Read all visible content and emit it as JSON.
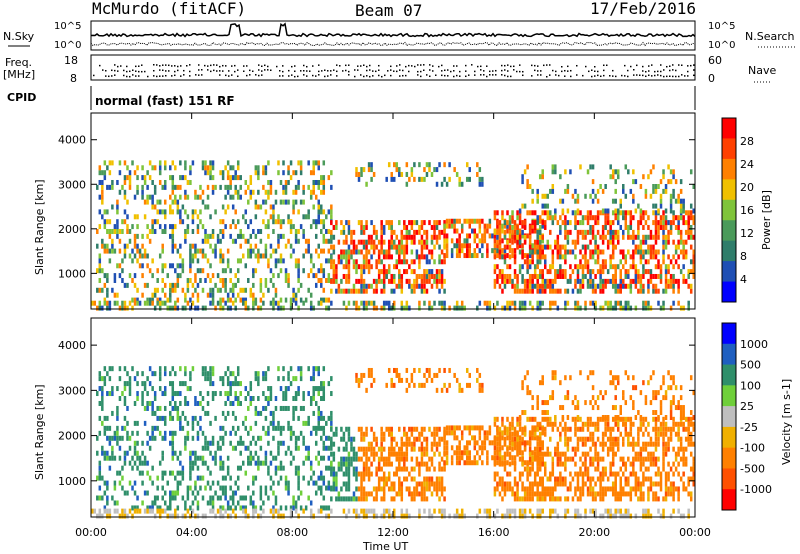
{
  "header": {
    "site": "McMurdo (fitACF)",
    "beam": "Beam 07",
    "date": "17/Feb/2016"
  },
  "noise_panel": {
    "left_label": "N.Sky",
    "right_label": "N.Search",
    "left_ticks": [
      "10^5",
      "10^0"
    ],
    "right_ticks": [
      "10^5",
      "10^0"
    ]
  },
  "freq_panel": {
    "left_label_top": "Freq.",
    "left_label_bottom": "[MHz]",
    "right_label": "Nave",
    "left_ticks": [
      "18",
      "8"
    ],
    "right_ticks": [
      "60",
      "0"
    ]
  },
  "cpid": {
    "label": "CPID",
    "value": "normal (fast) 151 RF"
  },
  "colors": {
    "power_scale": [
      "#0000ff",
      "#1f4fb4",
      "#2f7d6a",
      "#4a9a5a",
      "#7fc43a",
      "#f0c000",
      "#ff8000",
      "#ff4000",
      "#ff0000"
    ],
    "velocity_scale": [
      "#0000ff",
      "#1f5fc0",
      "#2f8f6a",
      "#6fcf3a",
      "#bfbfbf",
      "#f0b000",
      "#ff8000",
      "#ff5000",
      "#ff0000"
    ]
  },
  "chart_data": [
    {
      "type": "heatmap",
      "panel": "power",
      "ylabel": "Slant Range [km]",
      "xlabel": "Time UT",
      "x_ticks": [
        "00:00",
        "04:00",
        "08:00",
        "12:00",
        "16:00",
        "20:00",
        "00:00"
      ],
      "y_ticks": [
        1000,
        2000,
        3000,
        4000
      ],
      "ylim": [
        200,
        4600
      ],
      "colorbar_label": "Power [dB]",
      "colorbar_ticks": [
        4,
        8,
        12,
        16,
        20,
        24,
        28
      ],
      "colorbar_range": [
        0,
        32
      ]
    },
    {
      "type": "heatmap",
      "panel": "velocity",
      "ylabel": "Slant Range [km]",
      "xlabel": "Time UT",
      "x_ticks": [
        "00:00",
        "04:00",
        "08:00",
        "12:00",
        "16:00",
        "20:00",
        "00:00"
      ],
      "y_ticks": [
        1000,
        2000,
        3000,
        4000
      ],
      "ylim": [
        200,
        4600
      ],
      "colorbar_label": "Velocity [m s-1]",
      "colorbar_ticks": [
        1000,
        500,
        100,
        25,
        -25,
        -100,
        -500,
        -1000
      ]
    }
  ]
}
